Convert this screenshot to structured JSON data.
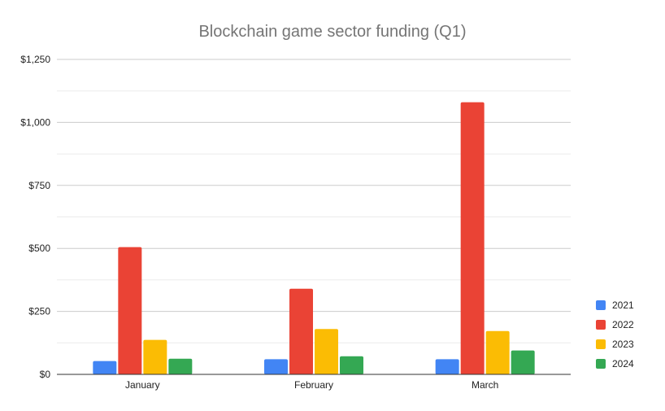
{
  "chart_data": {
    "type": "bar",
    "title": "Blockchain game sector funding (Q1)",
    "xlabel": "",
    "ylabel": "",
    "categories": [
      "January",
      "February",
      "March"
    ],
    "series": [
      {
        "name": "2021",
        "color": "#4285F4",
        "values": [
          53,
          60,
          60
        ]
      },
      {
        "name": "2022",
        "color": "#EA4335",
        "values": [
          505,
          340,
          1080
        ]
      },
      {
        "name": "2023",
        "color": "#FBBC04",
        "values": [
          137,
          180,
          172
        ]
      },
      {
        "name": "2024",
        "color": "#34A853",
        "values": [
          62,
          72,
          95
        ]
      }
    ],
    "ylim": [
      0,
      1250
    ],
    "yticks": [
      0,
      250,
      500,
      750,
      1000,
      1250
    ],
    "ytick_labels": [
      "$0",
      "$250",
      "$500",
      "$750",
      "$1,000",
      "$1,250"
    ],
    "grid": true,
    "legend_position": "right"
  }
}
